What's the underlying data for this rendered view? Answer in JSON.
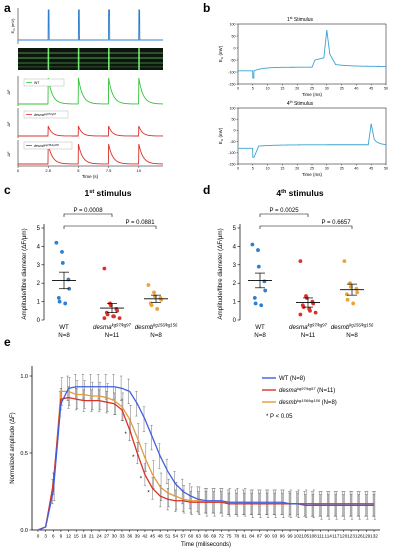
{
  "panels": {
    "a": {
      "letter": "a",
      "ylabel_em": "E",
      "ylabel_em_sub": "m",
      "ylabel_em_unit": "(mV)",
      "ylabel_df": "ΔF",
      "legend_wt": "WT",
      "legend_desma_base": "desma",
      "legend_desma_sup": "kg97/kg97",
      "legend_desmb_base": "desmb",
      "legend_desmb_sup": "kg156/kg156",
      "xticks": [
        "0",
        "2.5",
        "5",
        "7.5",
        "10"
      ],
      "xlabel": "Time (s)"
    },
    "b": {
      "letter": "b",
      "top_title_num": "1",
      "top_title_sup": "st",
      "top_title_rest": " Stimulus",
      "bottom_title_num": "4",
      "bottom_title_sup": "th",
      "bottom_title_rest": " Stimulus",
      "ylabel_base": "E",
      "ylabel_sub": "m",
      "ylabel_unit": "(mV)",
      "yticks_top": [
        "100",
        "50",
        "0",
        "-50",
        "-100",
        "-150"
      ],
      "yticks_bottom": [
        "100",
        "50",
        "0",
        "-50",
        "-100",
        "-150"
      ],
      "xticks": [
        "0",
        "5",
        "10",
        "15",
        "20",
        "25",
        "30",
        "35",
        "40",
        "45",
        "50"
      ],
      "xlabel": "Time (ms)"
    },
    "c": {
      "letter": "c",
      "title_num": "1",
      "title_sup": "st",
      "title_rest": " stimulus",
      "ylabel": "Amplitude/fibre diameter (ΔF/μm)",
      "yticks": [
        "0",
        "1",
        "2",
        "3",
        "4",
        "5"
      ],
      "p_top": "P = 0.0008",
      "p_bottom": "P = 0.0881",
      "groups": [
        {
          "label": "WT",
          "n": "N=8"
        },
        {
          "label": "desma",
          "sup": "kg97/kg97",
          "n": "N=11"
        },
        {
          "label": "desmb",
          "sup": "kg156/kg156",
          "n": "N=8"
        }
      ]
    },
    "d": {
      "letter": "d",
      "title_num": "4",
      "title_sup": "th",
      "title_rest": " stimulus",
      "ylabel": "Amplitude/fibre diameter (ΔF/μm)",
      "yticks": [
        "0",
        "1",
        "2",
        "3",
        "4",
        "5"
      ],
      "p_top": "P = 0.0025",
      "p_bottom": "P = 0.6657",
      "groups": [
        {
          "label": "WT",
          "n": "N=8"
        },
        {
          "label": "desma",
          "sup": "kg97/kg97",
          "n": "N=11"
        },
        {
          "label": "desmb",
          "sup": "kg156/kg156",
          "n": "N=8"
        }
      ]
    },
    "e": {
      "letter": "e",
      "ylabel": "Normalized amplitude (ΔF)",
      "xlabel": "Time (miliseconds)",
      "yticks": [
        "0.0",
        "0.5",
        "1.0"
      ],
      "xticks": [
        "0",
        "3",
        "6",
        "9",
        "12",
        "15",
        "18",
        "21",
        "24",
        "27",
        "30",
        "33",
        "36",
        "39",
        "42",
        "45",
        "48",
        "51",
        "54",
        "57",
        "60",
        "63",
        "66",
        "69",
        "72",
        "75",
        "78",
        "81",
        "84",
        "87",
        "90",
        "93",
        "96",
        "99",
        "102",
        "105",
        "108",
        "111",
        "114",
        "117",
        "120",
        "123",
        "126",
        "129",
        "132"
      ],
      "legend": [
        {
          "base": "WT",
          "sup": "",
          "n": " (N=8)"
        },
        {
          "base": "desma",
          "sup": "kg97/kg97",
          "n": " (N=11)"
        },
        {
          "base": "desmb",
          "sup": "kg156/kg156",
          "n": " (N=8)"
        }
      ],
      "star_note": "* P < 0.05"
    }
  },
  "colors": {
    "wt_blue": "#2f7fd0",
    "wt_green": "#35c23a",
    "desma_red": "#d9302b",
    "desmb_orange": "#e8a33a",
    "trace_teal": "#3aa3cf",
    "line_wt": "#3f5fe0",
    "line_desma": "#d8322a",
    "line_desmb": "#e39a3e"
  },
  "chart_data": [
    {
      "id": "a",
      "type": "line",
      "xlabel": "Time (s)",
      "xlim": [
        0,
        12
      ],
      "stimulus_times_s": [
        2.5,
        5.0,
        7.5,
        10.0
      ],
      "series": [
        {
          "name": "WT"
        },
        {
          "name": "desma kg97/kg97"
        },
        {
          "name": "desmb kg156/kg156"
        }
      ]
    },
    {
      "id": "b",
      "type": "line",
      "xlabel": "Time (ms)",
      "xlim": [
        0,
        50
      ],
      "ylim": [
        -150,
        100
      ],
      "traces": [
        {
          "title": "1st Stimulus",
          "baseline_mv": -95,
          "artifact_min_mv": -125,
          "ap_peak_mv": 75,
          "ap_time_ms": 30
        },
        {
          "title": "4th Stimulus",
          "baseline_mv": -80,
          "artifact_min_mv": -120,
          "ap_peak_mv": 30,
          "ap_time_ms": 45
        }
      ]
    },
    {
      "id": "c",
      "type": "scatter",
      "title": "1st stimulus",
      "ylim": [
        0,
        5
      ],
      "groups": [
        {
          "name": "WT",
          "mean": 2.15,
          "sem": 0.45,
          "points": [
            4.2,
            3.7,
            3.1,
            2.2,
            1.7,
            1.2,
            1.0,
            0.9
          ]
        },
        {
          "name": "desma kg97/kg97",
          "mean": 0.65,
          "sem": 0.25,
          "points": [
            2.8,
            0.9,
            0.8,
            0.6,
            0.5,
            0.4,
            0.3,
            0.2,
            0.2,
            0.1,
            0.1
          ]
        },
        {
          "name": "desmb kg156/kg156",
          "mean": 1.15,
          "sem": 0.2,
          "points": [
            1.9,
            1.5,
            1.3,
            1.2,
            1.1,
            0.9,
            0.8,
            0.6
          ]
        }
      ],
      "comparisons": [
        {
          "between": [
            "WT",
            "desma kg97/kg97"
          ],
          "p": "0.0008"
        },
        {
          "between": [
            "WT",
            "desmb kg156/kg156"
          ],
          "p": "0.0881"
        }
      ]
    },
    {
      "id": "d",
      "type": "scatter",
      "title": "4th stimulus",
      "ylim": [
        0,
        5
      ],
      "groups": [
        {
          "name": "WT",
          "mean": 2.15,
          "sem": 0.4,
          "points": [
            4.1,
            3.8,
            2.9,
            2.1,
            1.6,
            1.2,
            0.9,
            0.8
          ]
        },
        {
          "name": "desma kg97/kg97",
          "mean": 0.95,
          "sem": 0.25,
          "points": [
            3.2,
            1.3,
            1.2,
            1.0,
            0.9,
            0.8,
            0.7,
            0.6,
            0.5,
            0.4,
            0.3
          ]
        },
        {
          "name": "desmb kg156/kg156",
          "mean": 1.65,
          "sem": 0.3,
          "points": [
            3.2,
            2.0,
            1.8,
            1.7,
            1.5,
            1.4,
            1.1,
            0.9
          ]
        }
      ],
      "comparisons": [
        {
          "between": [
            "WT",
            "desma kg97/kg97"
          ],
          "p": "0.0025"
        },
        {
          "between": [
            "WT",
            "desmb kg156/kg156"
          ],
          "p": "0.6657"
        }
      ]
    },
    {
      "id": "e",
      "type": "line",
      "xlabel": "Time (miliseconds)",
      "ylabel": "Normalized amplitude (ΔF)",
      "ylim": [
        0,
        1
      ],
      "x": [
        0,
        3,
        6,
        9,
        12,
        15,
        18,
        21,
        24,
        27,
        30,
        33,
        36,
        39,
        42,
        45,
        48,
        51,
        54,
        57,
        60,
        63,
        66,
        69,
        72,
        75,
        78,
        81,
        84,
        87,
        90,
        93,
        96,
        99,
        102,
        105,
        108,
        111,
        114,
        117,
        120,
        123,
        126,
        129,
        132
      ],
      "series": [
        {
          "name": "WT (N=8)",
          "values": [
            0.0,
            0.02,
            0.25,
            0.82,
            0.92,
            0.93,
            0.93,
            0.93,
            0.93,
            0.93,
            0.93,
            0.92,
            0.9,
            0.82,
            0.72,
            0.6,
            0.48,
            0.38,
            0.3,
            0.25,
            0.22,
            0.2,
            0.19,
            0.19,
            0.19,
            0.18,
            0.18,
            0.18,
            0.18,
            0.18,
            0.18,
            0.18,
            0.18,
            0.17,
            0.17,
            0.17,
            0.17,
            0.17,
            0.17,
            0.17,
            0.17,
            0.17,
            0.17,
            0.17,
            0.17
          ],
          "sem": 0.08
        },
        {
          "name": "desma kg97/kg97 (N=11)",
          "values": [
            0.0,
            0.02,
            0.3,
            0.85,
            0.86,
            0.85,
            0.84,
            0.84,
            0.84,
            0.83,
            0.82,
            0.78,
            0.65,
            0.5,
            0.36,
            0.27,
            0.22,
            0.2,
            0.19,
            0.19,
            0.18,
            0.18,
            0.18,
            0.18,
            0.18,
            0.17,
            0.17,
            0.17,
            0.17,
            0.17,
            0.17,
            0.17,
            0.17,
            0.17,
            0.17,
            0.16,
            0.16,
            0.16,
            0.16,
            0.16,
            0.16,
            0.16,
            0.16,
            0.16,
            0.16
          ],
          "sem": 0.07
        },
        {
          "name": "desmb kg156/kg156 (N=8)",
          "values": [
            0.0,
            0.02,
            0.28,
            0.9,
            0.9,
            0.88,
            0.88,
            0.87,
            0.87,
            0.86,
            0.84,
            0.8,
            0.72,
            0.6,
            0.47,
            0.36,
            0.28,
            0.24,
            0.22,
            0.2,
            0.19,
            0.19,
            0.18,
            0.18,
            0.18,
            0.18,
            0.18,
            0.18,
            0.17,
            0.17,
            0.17,
            0.17,
            0.17,
            0.17,
            0.17,
            0.17,
            0.17,
            0.16,
            0.16,
            0.16,
            0.16,
            0.16,
            0.16,
            0.16,
            0.16
          ],
          "sem": 0.09
        }
      ],
      "significant_x": [
        36,
        39,
        42,
        45
      ]
    }
  ]
}
